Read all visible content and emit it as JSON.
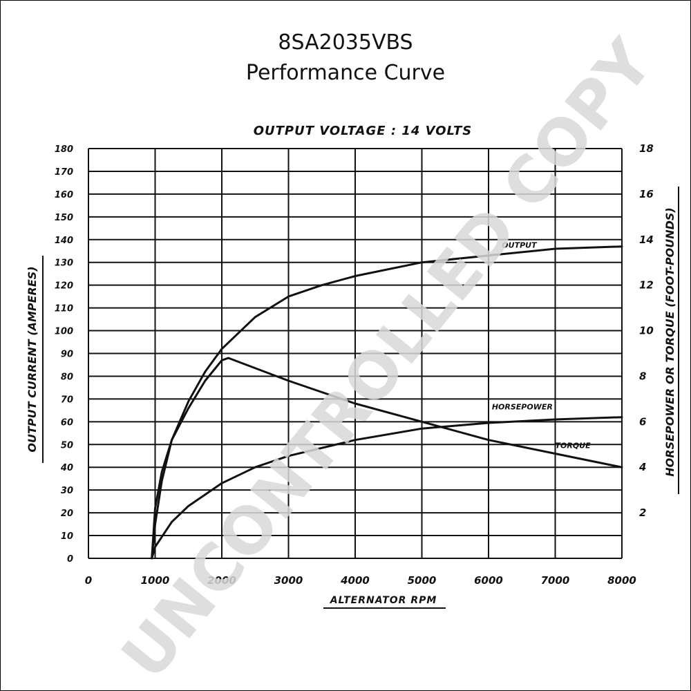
{
  "header": {
    "model": "8SA2035VBS",
    "subtitle": "Performance Curve"
  },
  "watermark": {
    "text": "UNCONTROLLED COPY",
    "color": "#d9d9d9"
  },
  "chart_data": {
    "type": "line",
    "title": "OUTPUT VOLTAGE : 14 VOLTS",
    "xlabel": "ALTERNATOR RPM",
    "ylabel_left": "OUTPUT CURRENT (AMPERES)",
    "ylabel_right": "HORSEPOWER OR TORQUE (FOOT-POUNDS)",
    "xlim": [
      0,
      8000
    ],
    "ylim_left": [
      0,
      180
    ],
    "ylim_right": [
      0,
      18
    ],
    "x_ticks": [
      "0",
      "1000",
      "2000",
      "3000",
      "4000",
      "5000",
      "6000",
      "7000",
      "8000"
    ],
    "y_ticks_left": [
      "0",
      "10",
      "20",
      "30",
      "40",
      "50",
      "60",
      "70",
      "80",
      "90",
      "100",
      "110",
      "120",
      "130",
      "140",
      "150",
      "160",
      "170",
      "180"
    ],
    "y_ticks_right": [
      "2",
      "4",
      "6",
      "8",
      "10",
      "12",
      "14",
      "16",
      "18"
    ],
    "grid": true,
    "line_color": "#111111",
    "series": [
      {
        "name": "OUTPUT",
        "axis": "left",
        "x": [
          950,
          1000,
          1100,
          1250,
          1500,
          1750,
          2000,
          2500,
          3000,
          3500,
          4000,
          5000,
          6000,
          7000,
          8000
        ],
        "y": [
          0,
          15,
          34,
          52,
          69,
          82,
          92,
          106,
          115,
          120,
          124,
          130,
          133,
          136,
          137
        ]
      },
      {
        "name": "TORQUE",
        "axis": "right",
        "x": [
          950,
          1000,
          1100,
          1250,
          1500,
          1750,
          2000,
          2100,
          3000,
          4000,
          5000,
          6000,
          7000,
          8000
        ],
        "y": [
          0,
          2.2,
          3.8,
          5.2,
          6.6,
          7.8,
          8.7,
          8.8,
          7.8,
          6.8,
          6.0,
          5.2,
          4.6,
          4.0
        ]
      },
      {
        "name": "HORSEPOWER",
        "axis": "right",
        "x": [
          950,
          1000,
          1250,
          1500,
          2000,
          2500,
          3000,
          4000,
          5000,
          6000,
          7000,
          8000
        ],
        "y": [
          0,
          0.5,
          1.6,
          2.3,
          3.3,
          4.0,
          4.5,
          5.2,
          5.7,
          5.95,
          6.1,
          6.2
        ]
      }
    ],
    "annotations": [
      {
        "text": "OUTPUT",
        "series": "OUTPUT",
        "x": 6200,
        "y_left": 134
      },
      {
        "text": "HORSEPOWER",
        "series": "HORSEPOWER",
        "x": 6050,
        "y_right": 6.3
      },
      {
        "text": "TORQUE",
        "series": "TORQUE",
        "x": 7000,
        "y_right": 4.6
      }
    ]
  }
}
